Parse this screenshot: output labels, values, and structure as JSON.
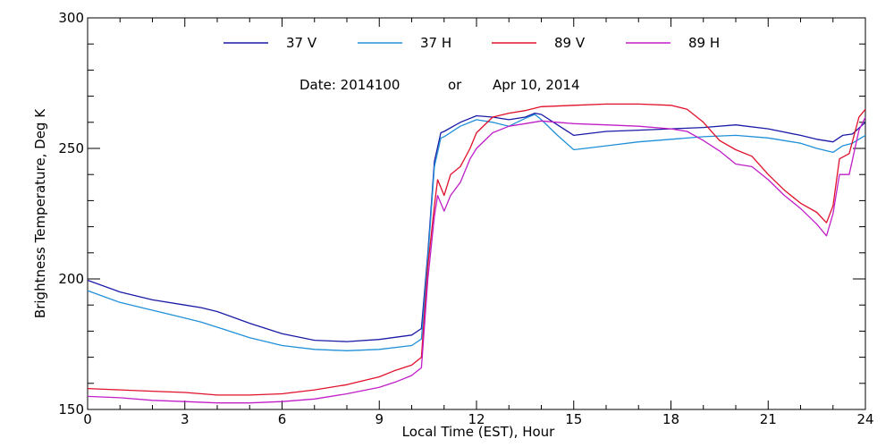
{
  "chart_data": {
    "type": "line",
    "xlabel": "Local Time (EST), Hour",
    "ylabel": "Brightness Temperature, Deg K",
    "xlim": [
      0,
      24
    ],
    "ylim": [
      150,
      300
    ],
    "x_ticks": [
      0,
      3,
      6,
      9,
      12,
      15,
      18,
      21,
      24
    ],
    "y_ticks": [
      150,
      200,
      250,
      300
    ],
    "grid": false,
    "legend_placement": "top",
    "annotation": {
      "date_label": "Date: 2014100",
      "or_label": "or",
      "date_text": "Apr 10, 2014"
    },
    "series": [
      {
        "name": "37 V",
        "color": "#1a1aa6",
        "x": [
          0,
          1,
          2,
          3,
          3.5,
          4,
          5,
          6,
          7,
          8,
          9,
          10,
          10.3,
          10.5,
          10.7,
          10.9,
          11,
          11.5,
          12,
          12.5,
          13,
          13.5,
          13.8,
          14,
          14.5,
          15,
          16,
          17,
          18,
          19,
          20,
          21,
          22,
          22.5,
          23,
          23.3,
          23.6,
          24
        ],
        "y": [
          199.5,
          195,
          192,
          190,
          189,
          187.5,
          183,
          179,
          176.5,
          176,
          176.8,
          178.5,
          181,
          210,
          245,
          256,
          256.5,
          260,
          262.5,
          262,
          261,
          262,
          263.5,
          263,
          259,
          255,
          256.5,
          257,
          257.5,
          258,
          259,
          257.5,
          255,
          253.5,
          252.5,
          255,
          255.5,
          260
        ]
      },
      {
        "name": "37 H",
        "color": "#2090d8",
        "x": [
          0,
          1,
          2,
          3,
          3.5,
          4,
          5,
          6,
          7,
          8,
          9,
          10,
          10.3,
          10.5,
          10.7,
          10.9,
          11,
          11.5,
          12,
          12.5,
          13,
          13.5,
          13.8,
          14,
          14.5,
          15,
          16,
          17,
          18,
          19,
          20,
          21,
          22,
          22.5,
          23,
          23.3,
          23.6,
          24
        ],
        "y": [
          195.5,
          191,
          188,
          185,
          183.5,
          181.5,
          177.5,
          174.5,
          173,
          172.5,
          173,
          174.5,
          177,
          208,
          243,
          254,
          254.5,
          258.5,
          261,
          260,
          258.5,
          261.5,
          263,
          261,
          255,
          249.5,
          251,
          252.5,
          253.5,
          254.5,
          255,
          254,
          252,
          250,
          248.5,
          251,
          252,
          255
        ]
      },
      {
        "name": "89 V",
        "color": "#e0102a",
        "x": [
          0,
          1,
          2,
          3,
          4,
          5,
          6,
          7,
          8,
          9,
          9.5,
          10,
          10.3,
          10.5,
          10.7,
          10.8,
          11,
          11.2,
          11.5,
          11.8,
          12,
          12.5,
          13,
          13.5,
          14,
          15,
          16,
          17,
          18,
          18.5,
          19,
          19.5,
          20,
          20.5,
          21,
          21.5,
          22,
          22.5,
          22.8,
          23,
          23.2,
          23.5,
          23.8,
          24
        ],
        "y": [
          158,
          157.5,
          157,
          156.5,
          155.5,
          155.5,
          156,
          157.5,
          159.5,
          162.5,
          165,
          167,
          170,
          205,
          228,
          238,
          232,
          240,
          243,
          250,
          256,
          262,
          263.5,
          264.5,
          266,
          266.5,
          267,
          267,
          266.5,
          265,
          260,
          253,
          249.5,
          247,
          240,
          234,
          229,
          225.5,
          221.5,
          228,
          246,
          248,
          262,
          265
        ]
      },
      {
        "name": "89 H",
        "color": "#c01ec8",
        "x": [
          0,
          1,
          2,
          3,
          4,
          5,
          6,
          7,
          8,
          9,
          9.5,
          10,
          10.3,
          10.5,
          10.7,
          10.8,
          11,
          11.2,
          11.5,
          11.8,
          12,
          12.5,
          13,
          13.5,
          14,
          15,
          16,
          17,
          18,
          18.5,
          19,
          19.5,
          20,
          20.5,
          21,
          21.5,
          22,
          22.5,
          22.8,
          23,
          23.2,
          23.5,
          23.8,
          24
        ],
        "y": [
          155,
          154.5,
          153.5,
          153,
          152.5,
          152.5,
          153,
          154,
          156,
          158.5,
          160.5,
          163,
          166,
          200,
          224,
          232,
          226,
          232,
          237,
          246,
          250,
          256,
          258.5,
          259.5,
          260.5,
          259.5,
          259,
          258.5,
          257.5,
          256.5,
          253,
          249,
          244,
          243,
          238,
          232,
          227,
          221,
          216.5,
          225,
          240,
          240,
          257,
          262
        ]
      }
    ]
  }
}
